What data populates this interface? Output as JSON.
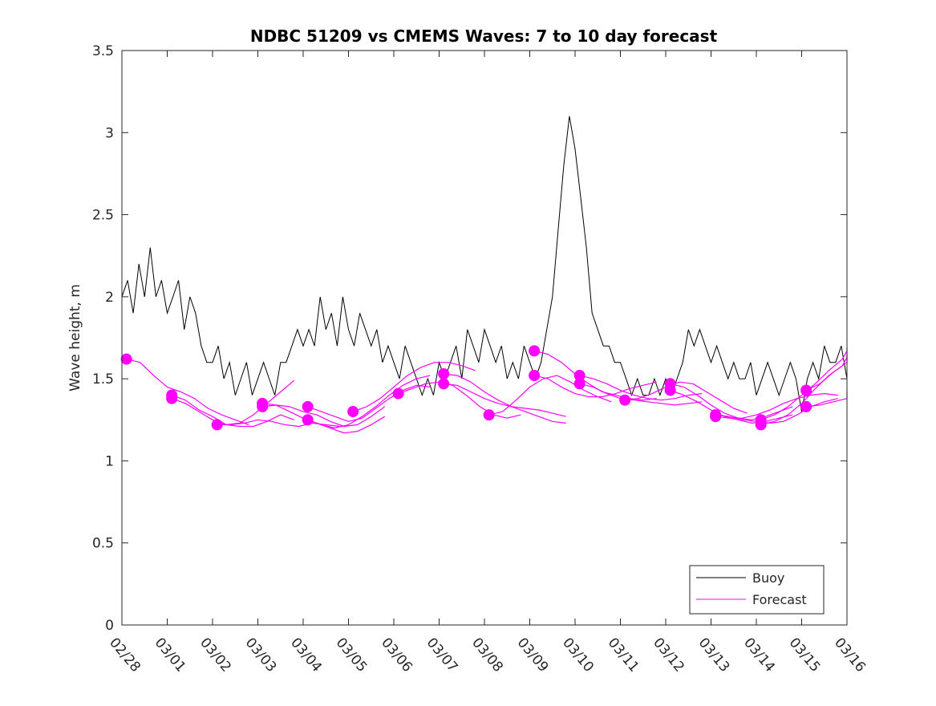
{
  "chart_data": {
    "type": "line",
    "title": "NDBC 51209 vs CMEMS Waves: 7 to 10 day forecast",
    "xlabel": "",
    "ylabel": "Wave height, m",
    "xlim_days": [
      0,
      16
    ],
    "ylim": [
      0,
      3.5
    ],
    "yticks": [
      0,
      0.5,
      1,
      1.5,
      2,
      2.5,
      3,
      3.5
    ],
    "ytick_labels": [
      "0",
      "0.5",
      "1",
      "1.5",
      "2",
      "2.5",
      "3",
      "3.5"
    ],
    "xtick_labels": [
      "02/28",
      "03/01",
      "03/02",
      "03/03",
      "03/04",
      "03/05",
      "03/06",
      "03/07",
      "03/08",
      "03/09",
      "03/10",
      "03/11",
      "03/12",
      "03/13",
      "03/14",
      "03/15",
      "03/16"
    ],
    "grid": false,
    "legend": {
      "placement": "bottom-right",
      "entries": [
        {
          "label": "Buoy",
          "color": "#000000"
        },
        {
          "label": "Forecast",
          "color": "#ff00ff"
        }
      ]
    },
    "colors": {
      "buoy": "#000000",
      "forecast": "#ff00ff"
    },
    "buoy": {
      "name": "Buoy",
      "step_days": 0.125,
      "values": [
        2.0,
        2.1,
        1.9,
        2.2,
        2.0,
        2.3,
        2.0,
        2.1,
        1.9,
        2.0,
        2.1,
        1.8,
        2.0,
        1.9,
        1.7,
        1.6,
        1.6,
        1.7,
        1.5,
        1.6,
        1.4,
        1.5,
        1.6,
        1.4,
        1.5,
        1.6,
        1.5,
        1.4,
        1.6,
        1.6,
        1.7,
        1.8,
        1.7,
        1.8,
        1.7,
        2.0,
        1.8,
        1.9,
        1.7,
        2.0,
        1.8,
        1.7,
        1.9,
        1.8,
        1.7,
        1.8,
        1.6,
        1.7,
        1.6,
        1.5,
        1.7,
        1.6,
        1.5,
        1.4,
        1.5,
        1.4,
        1.6,
        1.5,
        1.6,
        1.7,
        1.5,
        1.8,
        1.7,
        1.6,
        1.8,
        1.7,
        1.6,
        1.7,
        1.5,
        1.6,
        1.5,
        1.7,
        1.6,
        1.5,
        1.6,
        1.8,
        2.0,
        2.4,
        2.8,
        3.1,
        2.9,
        2.6,
        2.3,
        1.9,
        1.8,
        1.7,
        1.7,
        1.6,
        1.6,
        1.5,
        1.4,
        1.5,
        1.4,
        1.4,
        1.5,
        1.4,
        1.5,
        1.4,
        1.5,
        1.6,
        1.8,
        1.7,
        1.8,
        1.7,
        1.6,
        1.7,
        1.6,
        1.5,
        1.6,
        1.5,
        1.5,
        1.6,
        1.4,
        1.5,
        1.6,
        1.5,
        1.4,
        1.5,
        1.6,
        1.5,
        1.3,
        1.5,
        1.6,
        1.5,
        1.7,
        1.6,
        1.6,
        1.7,
        1.5
      ]
    },
    "forecast": {
      "name": "Forecast",
      "segments": [
        {
          "start_day": 0.1,
          "values": [
            1.62,
            1.6,
            1.52,
            1.45,
            1.42,
            1.38,
            1.32,
            1.28,
            1.25,
            1.22
          ]
        },
        {
          "start_day": 1.1,
          "values": [
            1.4,
            1.37,
            1.31,
            1.27,
            1.22,
            1.21,
            1.21,
            1.24,
            1.28,
            1.25
          ]
        },
        {
          "start_day": 1.1,
          "values": [
            1.38,
            1.35,
            1.3,
            1.25,
            1.22,
            1.23,
            1.28,
            1.35,
            1.42,
            1.49
          ]
        },
        {
          "start_day": 2.1,
          "values": [
            1.22,
            1.22,
            1.23,
            1.25,
            1.24,
            1.22,
            1.21,
            1.23,
            1.22,
            1.21
          ]
        },
        {
          "start_day": 3.1,
          "values": [
            1.35,
            1.34,
            1.3,
            1.26,
            1.23,
            1.2,
            1.17,
            1.18,
            1.22,
            1.27
          ]
        },
        {
          "start_day": 3.1,
          "values": [
            1.33,
            1.34,
            1.33,
            1.3,
            1.28,
            1.24,
            1.21,
            1.22,
            1.27,
            1.33
          ]
        },
        {
          "start_day": 4.1,
          "values": [
            1.33,
            1.3,
            1.27,
            1.24,
            1.26,
            1.32,
            1.38,
            1.43,
            1.46,
            1.45
          ]
        },
        {
          "start_day": 4.1,
          "values": [
            1.25,
            1.22,
            1.2,
            1.22,
            1.27,
            1.33,
            1.4,
            1.46,
            1.5,
            1.52
          ]
        },
        {
          "start_day": 5.1,
          "values": [
            1.3,
            1.33,
            1.38,
            1.45,
            1.52,
            1.57,
            1.6,
            1.6,
            1.58,
            1.55
          ]
        },
        {
          "start_day": 6.1,
          "values": [
            1.41,
            1.44,
            1.47,
            1.48,
            1.46,
            1.4,
            1.33,
            1.28,
            1.26,
            1.28
          ]
        },
        {
          "start_day": 7.1,
          "values": [
            1.53,
            1.52,
            1.48,
            1.42,
            1.37,
            1.33,
            1.3,
            1.27,
            1.24,
            1.23
          ]
        },
        {
          "start_day": 7.1,
          "values": [
            1.47,
            1.46,
            1.42,
            1.38,
            1.35,
            1.33,
            1.32,
            1.31,
            1.29,
            1.27
          ]
        },
        {
          "start_day": 8.1,
          "values": [
            1.28,
            1.3,
            1.37,
            1.45,
            1.5,
            1.52,
            1.48,
            1.43,
            1.39,
            1.36
          ]
        },
        {
          "start_day": 9.1,
          "values": [
            1.67,
            1.65,
            1.6,
            1.53,
            1.47,
            1.42,
            1.4,
            1.38,
            1.37,
            1.38
          ]
        },
        {
          "start_day": 9.1,
          "values": [
            1.52,
            1.5,
            1.45,
            1.41,
            1.39,
            1.39,
            1.41,
            1.44,
            1.46,
            1.48
          ]
        },
        {
          "start_day": 10.1,
          "values": [
            1.52,
            1.5,
            1.47,
            1.43,
            1.4,
            1.38,
            1.37,
            1.38,
            1.4,
            1.41
          ]
        },
        {
          "start_day": 10.1,
          "values": [
            1.47,
            1.45,
            1.41,
            1.38,
            1.37,
            1.36,
            1.35,
            1.34,
            1.35,
            1.36
          ]
        },
        {
          "start_day": 11.1,
          "values": [
            1.37,
            1.38,
            1.41,
            1.45,
            1.48,
            1.47,
            1.42,
            1.37,
            1.32,
            1.29
          ]
        },
        {
          "start_day": 12.1,
          "values": [
            1.47,
            1.45,
            1.4,
            1.34,
            1.29,
            1.26,
            1.25,
            1.27,
            1.3,
            1.33
          ]
        },
        {
          "start_day": 12.1,
          "values": [
            1.43,
            1.4,
            1.36,
            1.31,
            1.27,
            1.25,
            1.23,
            1.24,
            1.26,
            1.28
          ]
        },
        {
          "start_day": 13.1,
          "values": [
            1.27,
            1.26,
            1.26,
            1.28,
            1.31,
            1.35,
            1.38,
            1.4,
            1.41,
            1.4
          ]
        },
        {
          "start_day": 13.1,
          "values": [
            1.28,
            1.27,
            1.25,
            1.24,
            1.23,
            1.24,
            1.28,
            1.33,
            1.36,
            1.38
          ]
        },
        {
          "start_day": 14.1,
          "values": [
            1.25,
            1.28,
            1.33,
            1.4,
            1.47,
            1.55,
            1.62,
            1.67,
            1.69,
            1.68
          ]
        },
        {
          "start_day": 14.1,
          "values": [
            1.22,
            1.24,
            1.28,
            1.35,
            1.44,
            1.52,
            1.58,
            1.63,
            1.66,
            1.66
          ]
        },
        {
          "start_day": 15.1,
          "values": [
            1.43,
            1.47,
            1.54,
            1.6,
            1.62,
            1.64
          ]
        },
        {
          "start_day": 15.1,
          "values": [
            1.33,
            1.34,
            1.36,
            1.38,
            1.4,
            1.42
          ]
        }
      ],
      "segment_step_days": 0.1
    }
  }
}
